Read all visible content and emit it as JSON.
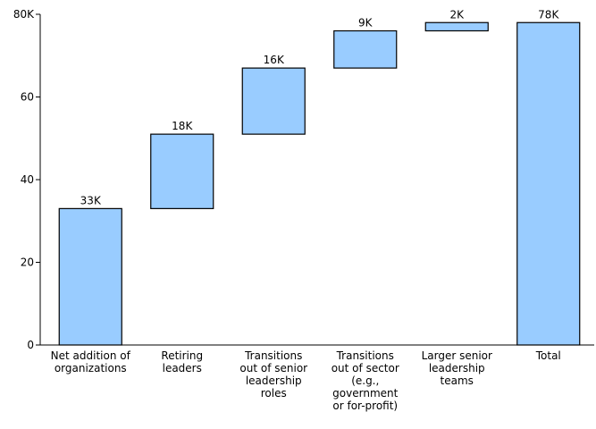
{
  "chart_data": {
    "type": "waterfall",
    "categories": [
      "Net addition of\norganizations",
      "Retiring\nleaders",
      "Transitions\nout of senior\nleadership\nroles",
      "Transitions\nout of sector\n(e.g.,\ngovernment\nor for-profit)",
      "Larger senior\nleadership\nteams",
      "Total"
    ],
    "values": [
      33,
      18,
      16,
      9,
      2,
      78
    ],
    "value_labels": [
      "33K",
      "18K",
      "16K",
      "9K",
      "2K",
      "78K"
    ],
    "last_is_total": true,
    "color": "#99ccff",
    "ylim": [
      0,
      80
    ],
    "yticks": [
      0,
      20,
      40,
      60,
      {
        "value": 80,
        "label": "80K"
      }
    ]
  }
}
